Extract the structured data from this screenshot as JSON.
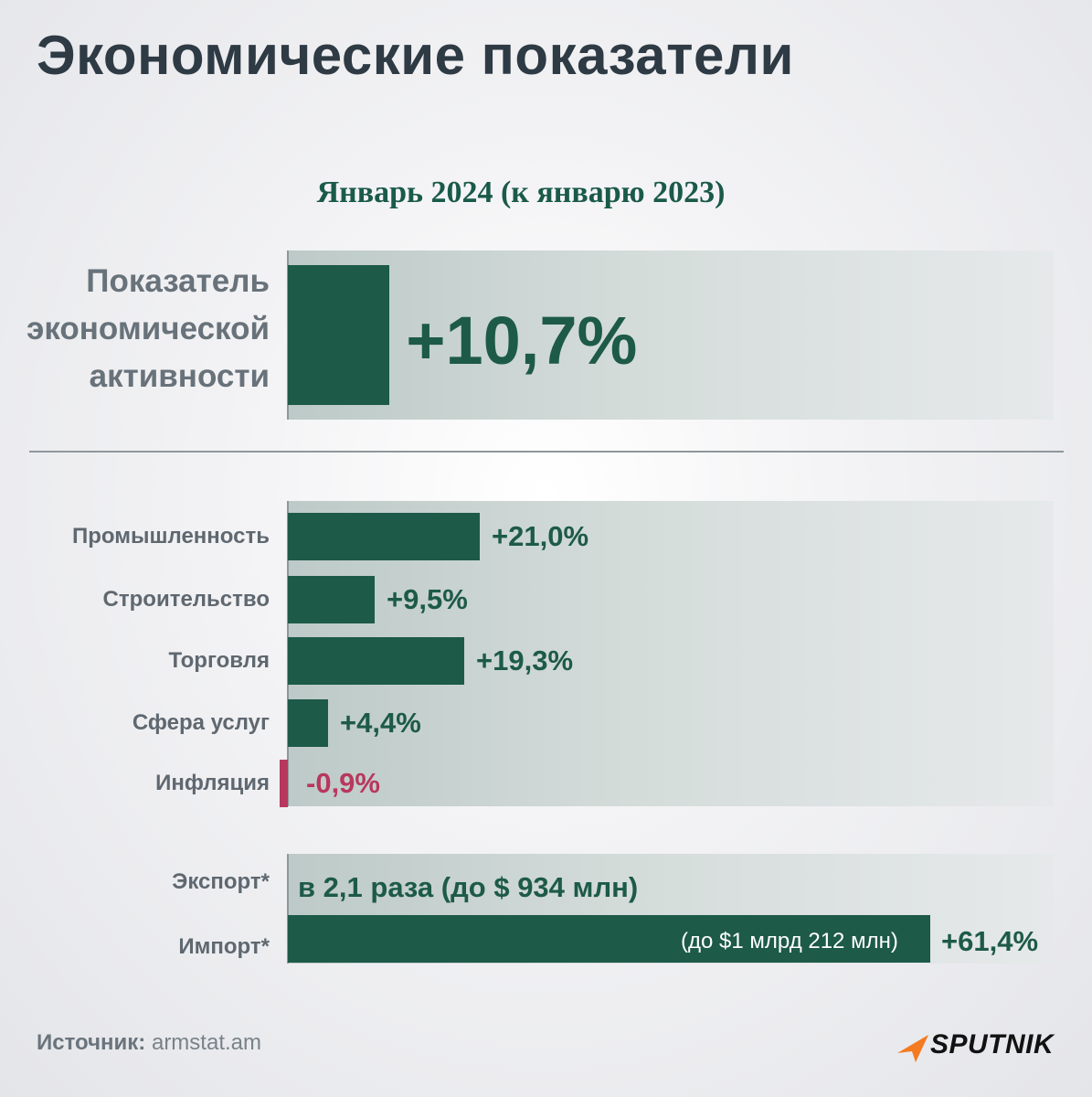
{
  "title": "Экономические показатели",
  "subtitle": "Январь 2024 (к январю 2023)",
  "colors": {
    "bar": "#1d5a48",
    "negative": "#b8375e",
    "title": "#2e3a44"
  },
  "headline": {
    "label_lines": [
      "Показатель",
      "экономической",
      "активности"
    ],
    "value": 10.7,
    "value_label": "+10,7%"
  },
  "chart_data": {
    "type": "bar",
    "orientation": "horizontal",
    "categories": [
      "Промышленность",
      "Строительство",
      "Торговля",
      "Сфера услуг",
      "Инфляция"
    ],
    "values": [
      21.0,
      9.5,
      19.3,
      4.4,
      -0.9
    ],
    "value_labels": [
      "+21,0%",
      "+9,5%",
      "+19,3%",
      "+4,4%",
      "-0,9%"
    ],
    "unit": "%"
  },
  "trade": {
    "export_label": "Экспорт*",
    "export_text": "в 2,1 раза (до $ 934 млн)",
    "import_label": "Импорт*",
    "import_note": "(до $1 млрд 212 млн)",
    "import_value": 61.4,
    "import_value_label": "+61,4%"
  },
  "source": {
    "prefix": "Источник:",
    "text": "armstat.am"
  },
  "brand": {
    "name": "SPUTNIK",
    "icon": "sputnik-arrow-icon"
  }
}
